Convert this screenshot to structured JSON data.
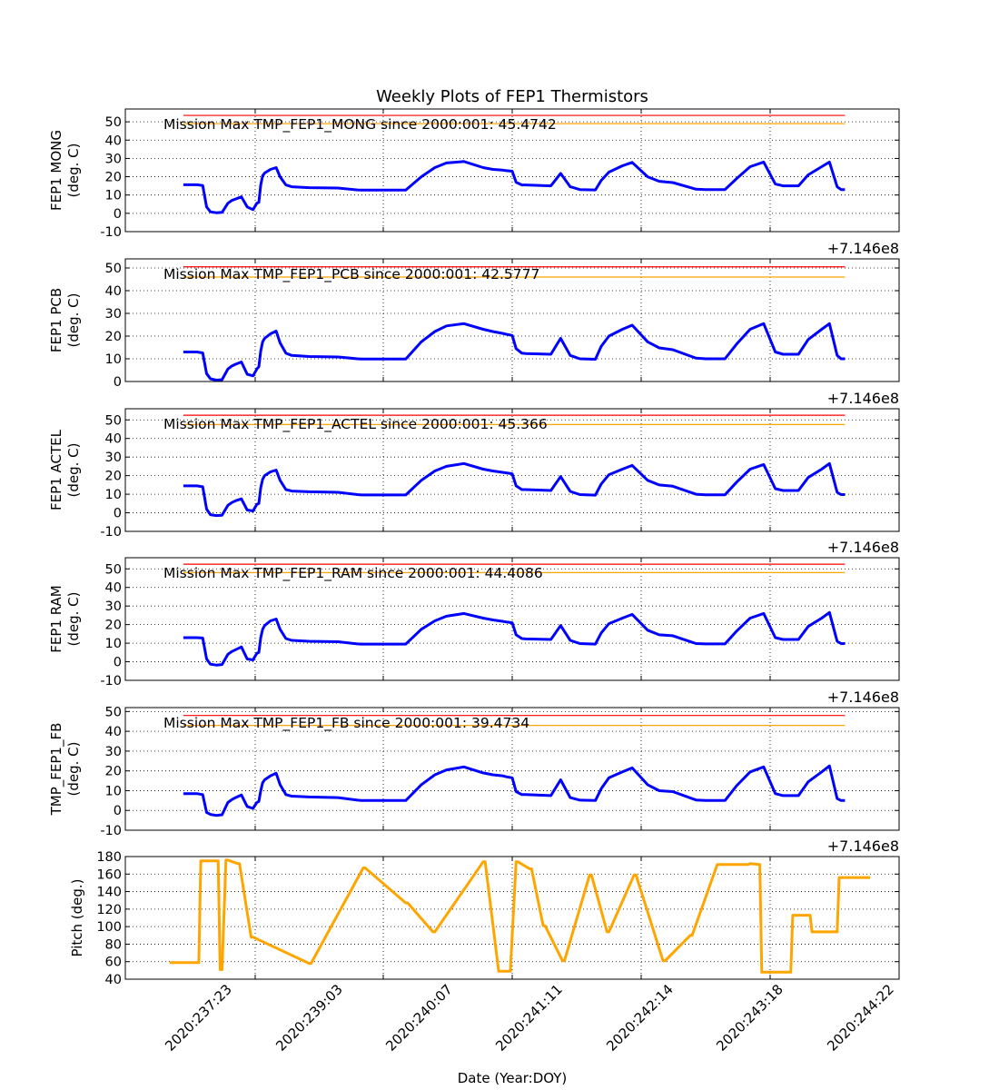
{
  "chart_data": {
    "title": "Weekly Plots of FEP1 Thermistors",
    "xlabel": "Date (Year:DOY)",
    "x_tick_labels": [
      "2020:237:23",
      "2020:239:03",
      "2020:240:07",
      "2020:241:11",
      "2020:242:14",
      "2020:243:18",
      "2020:244:22"
    ],
    "x_offset_label": "+7.146e8",
    "grid": true,
    "panels": [
      {
        "type": "line",
        "ylabel": [
          "FEP1 MONG",
          "(deg. C)"
        ],
        "ylim": [
          -10,
          57
        ],
        "yticks": [
          -10,
          0,
          10,
          20,
          30,
          40,
          50
        ],
        "annotation": "Mission Max TMP_FEP1_MONG since 2000:001: 45.4742",
        "red_limit": 53.5,
        "yellow_limit": 49,
        "series_color": "#0000ff",
        "x": [
          0.0,
          0.7,
          1.0,
          1.2,
          1.4,
          1.7,
          2.0,
          2.3,
          2.5,
          2.7,
          3.0,
          3.3,
          3.6,
          3.8,
          3.9,
          4.0,
          4.1,
          4.2,
          4.5,
          4.8,
          5.0,
          5.3,
          5.6,
          6.5,
          8.0,
          9.0,
          9.2,
          11.0,
          11.5,
          12.3,
          13.0,
          13.6,
          14.5,
          15.5,
          16.0,
          16.5,
          16.7,
          17.0,
          17.2,
          17.5,
          17.7,
          19.0,
          19.5,
          20.0,
          20.5,
          21.3,
          21.6,
          22.0,
          22.7,
          23.2,
          24.0,
          24.6,
          25.3,
          26.5,
          27.0,
          28.0,
          28.6,
          29.3,
          30.0,
          30.6,
          31.0,
          31.8,
          32.3,
          33.0,
          33.4,
          33.8,
          34.0,
          34.2
        ],
        "y": [
          15.6,
          15.6,
          15.2,
          3.5,
          0.8,
          0.3,
          0.5,
          5.5,
          7.0,
          7.8,
          9.0,
          3.5,
          2.0,
          5.5,
          6.0,
          15.5,
          20.5,
          22.0,
          24.0,
          25.0,
          20.0,
          15.5,
          14.5,
          14.0,
          13.8,
          12.8,
          12.7,
          12.7,
          12.7,
          20.0,
          25.0,
          27.5,
          28.3,
          25.0,
          24.0,
          23.6,
          23.3,
          23.0,
          17.0,
          15.5,
          15.5,
          15.0,
          21.8,
          14.5,
          13.0,
          12.8,
          18.0,
          22.5,
          26.0,
          27.8,
          20.0,
          17.5,
          16.8,
          13.2,
          13.0,
          13.0,
          19.0,
          25.5,
          28.0,
          16.0,
          15.0,
          15.0,
          21.0,
          25.5,
          28.0,
          14.5,
          13.0,
          13.0
        ]
      },
      {
        "type": "line",
        "ylabel": [
          "FEP1 PCB",
          "(deg. C)"
        ],
        "ylim": [
          0,
          54
        ],
        "yticks": [
          0,
          10,
          20,
          30,
          40,
          50
        ],
        "annotation": "Mission Max TMP_FEP1_PCB since 2000:001: 42.5777",
        "red_limit": 50.5,
        "yellow_limit": 46,
        "series_color": "#0000ff",
        "x": [
          0.0,
          0.7,
          1.0,
          1.2,
          1.4,
          1.7,
          2.0,
          2.3,
          2.5,
          2.7,
          3.0,
          3.3,
          3.6,
          3.8,
          3.9,
          4.0,
          4.1,
          4.2,
          4.5,
          4.8,
          5.0,
          5.3,
          5.6,
          6.5,
          8.0,
          9.0,
          9.2,
          11.0,
          11.5,
          12.3,
          13.0,
          13.6,
          14.5,
          15.5,
          16.0,
          16.5,
          16.7,
          17.0,
          17.2,
          17.5,
          17.7,
          19.0,
          19.5,
          20.0,
          20.5,
          21.3,
          21.6,
          22.0,
          22.7,
          23.2,
          24.0,
          24.6,
          25.3,
          26.5,
          27.0,
          28.0,
          28.6,
          29.3,
          30.0,
          30.6,
          31.0,
          31.8,
          32.3,
          33.0,
          33.4,
          33.8,
          34.0,
          34.2
        ],
        "y": [
          13.0,
          13.0,
          12.6,
          3.5,
          1.2,
          0.6,
          0.8,
          5.5,
          6.8,
          7.6,
          8.6,
          3.2,
          2.5,
          5.5,
          6.5,
          13.5,
          17.5,
          19.0,
          21.0,
          22.2,
          17.0,
          12.5,
          11.5,
          11.0,
          10.8,
          10.0,
          9.9,
          9.9,
          9.9,
          17.5,
          22.0,
          24.5,
          25.5,
          23.0,
          22.0,
          21.2,
          20.8,
          20.3,
          14.5,
          12.5,
          12.3,
          12.0,
          19.0,
          11.5,
          10.0,
          9.8,
          15.5,
          20.0,
          23.0,
          24.8,
          17.5,
          14.8,
          14.0,
          10.3,
          10.0,
          10.0,
          16.5,
          23.0,
          25.5,
          13.0,
          12.0,
          12.0,
          18.5,
          23.0,
          25.5,
          11.5,
          10.0,
          10.0
        ]
      },
      {
        "type": "line",
        "ylabel": [
          "FEP1 ACTEL",
          "(deg. C)"
        ],
        "ylim": [
          -10,
          56
        ],
        "yticks": [
          -10,
          0,
          10,
          20,
          30,
          40,
          50
        ],
        "annotation": "Mission Max TMP_FEP1_ACTEL since 2000:001: 45.366",
        "red_limit": 52.5,
        "yellow_limit": 47.5,
        "series_color": "#0000ff",
        "x": [
          0.0,
          0.7,
          1.0,
          1.2,
          1.4,
          1.7,
          2.0,
          2.3,
          2.5,
          2.7,
          3.0,
          3.3,
          3.6,
          3.8,
          3.9,
          4.0,
          4.1,
          4.2,
          4.5,
          4.8,
          5.0,
          5.3,
          5.6,
          6.5,
          8.0,
          9.0,
          9.2,
          11.0,
          11.5,
          12.3,
          13.0,
          13.6,
          14.5,
          15.5,
          16.0,
          16.5,
          16.7,
          17.0,
          17.2,
          17.5,
          17.7,
          19.0,
          19.5,
          20.0,
          20.5,
          21.3,
          21.6,
          22.0,
          22.7,
          23.2,
          24.0,
          24.6,
          25.3,
          26.5,
          27.0,
          28.0,
          28.6,
          29.3,
          30.0,
          30.6,
          31.0,
          31.8,
          32.3,
          33.0,
          33.4,
          33.8,
          34.0,
          34.2
        ],
        "y": [
          14.5,
          14.5,
          14.0,
          2.0,
          -1.0,
          -1.5,
          -1.3,
          4.0,
          5.5,
          6.5,
          7.5,
          1.5,
          1.0,
          4.5,
          5.0,
          13.5,
          18.0,
          20.0,
          22.0,
          23.0,
          17.5,
          12.5,
          11.7,
          11.3,
          11.0,
          9.8,
          9.6,
          9.6,
          9.6,
          17.5,
          22.5,
          25.0,
          26.5,
          23.5,
          22.5,
          21.8,
          21.5,
          21.0,
          14.5,
          12.5,
          12.5,
          12.0,
          19.5,
          11.5,
          9.8,
          9.5,
          15.5,
          20.5,
          23.5,
          25.5,
          17.5,
          15.0,
          14.3,
          10.0,
          9.7,
          9.7,
          16.5,
          23.5,
          26.0,
          13.0,
          12.0,
          12.0,
          19.0,
          23.5,
          26.5,
          11.0,
          9.8,
          9.8
        ]
      },
      {
        "type": "line",
        "ylabel": [
          "FEP1 RAM",
          "(deg. C)"
        ],
        "ylim": [
          -10,
          56
        ],
        "yticks": [
          -10,
          0,
          10,
          20,
          30,
          40,
          50
        ],
        "annotation": "Mission Max TMP_FEP1_RAM since 2000:001: 44.4086",
        "red_limit": 52.5,
        "yellow_limit": 48,
        "series_color": "#0000ff",
        "x": [
          0.0,
          0.7,
          1.0,
          1.2,
          1.4,
          1.7,
          2.0,
          2.3,
          2.5,
          2.7,
          3.0,
          3.3,
          3.6,
          3.8,
          3.9,
          4.0,
          4.1,
          4.2,
          4.5,
          4.8,
          5.0,
          5.3,
          5.6,
          6.5,
          8.0,
          9.0,
          9.2,
          11.0,
          11.5,
          12.3,
          13.0,
          13.6,
          14.5,
          15.5,
          16.0,
          16.5,
          16.7,
          17.0,
          17.2,
          17.5,
          17.7,
          19.0,
          19.5,
          20.0,
          20.5,
          21.3,
          21.6,
          22.0,
          22.7,
          23.2,
          24.0,
          24.6,
          25.3,
          26.5,
          27.0,
          28.0,
          28.6,
          29.3,
          30.0,
          30.6,
          31.0,
          31.8,
          32.3,
          33.0,
          33.4,
          33.8,
          34.0,
          34.2
        ],
        "y": [
          13.0,
          13.0,
          12.8,
          1.5,
          -1.3,
          -1.8,
          -1.5,
          4.0,
          5.5,
          6.5,
          8.0,
          1.5,
          1.0,
          4.5,
          5.0,
          13.0,
          17.5,
          19.5,
          22.0,
          23.0,
          17.5,
          12.5,
          11.5,
          11.0,
          10.8,
          9.6,
          9.5,
          9.5,
          9.5,
          17.5,
          22.0,
          24.5,
          26.0,
          23.5,
          22.5,
          21.8,
          21.4,
          21.0,
          14.5,
          12.5,
          12.3,
          12.0,
          19.5,
          11.5,
          9.8,
          9.5,
          15.5,
          20.5,
          23.5,
          25.5,
          17.0,
          14.5,
          14.0,
          9.8,
          9.6,
          9.6,
          16.5,
          23.5,
          26.0,
          13.0,
          12.0,
          12.0,
          19.0,
          23.5,
          26.5,
          11.0,
          9.8,
          9.8
        ]
      },
      {
        "type": "line",
        "ylabel": [
          "TMP_FEP1_FB",
          "(deg. C)"
        ],
        "ylim": [
          -10,
          52
        ],
        "yticks": [
          -10,
          0,
          10,
          20,
          30,
          40,
          50
        ],
        "annotation": "Mission Max TMP_FEP1_FB since 2000:001: 39.4734",
        "red_limit": 48,
        "yellow_limit": 43,
        "series_color": "#0000ff",
        "x": [
          0.0,
          0.7,
          1.0,
          1.2,
          1.4,
          1.7,
          2.0,
          2.3,
          2.5,
          2.7,
          3.0,
          3.3,
          3.6,
          3.8,
          3.9,
          4.0,
          4.1,
          4.2,
          4.5,
          4.8,
          5.0,
          5.3,
          5.6,
          6.5,
          8.0,
          9.0,
          9.2,
          11.0,
          11.5,
          12.3,
          13.0,
          13.6,
          14.5,
          15.5,
          16.0,
          16.5,
          16.7,
          17.0,
          17.2,
          17.5,
          17.7,
          19.0,
          19.5,
          20.0,
          20.5,
          21.3,
          21.6,
          22.0,
          22.7,
          23.2,
          24.0,
          24.6,
          25.3,
          26.5,
          27.0,
          28.0,
          28.6,
          29.3,
          30.0,
          30.6,
          31.0,
          31.8,
          32.3,
          33.0,
          33.4,
          33.8,
          34.0,
          34.2
        ],
        "y": [
          8.5,
          8.5,
          8.0,
          -1.0,
          -2.0,
          -2.5,
          -2.2,
          4.0,
          5.5,
          6.5,
          7.8,
          2.0,
          1.0,
          4.0,
          4.5,
          10.0,
          14.0,
          15.5,
          17.5,
          18.8,
          13.0,
          8.0,
          7.2,
          6.8,
          6.5,
          5.2,
          5.0,
          5.0,
          5.0,
          13.0,
          18.0,
          20.5,
          22.0,
          19.0,
          18.0,
          17.5,
          17.0,
          16.5,
          9.5,
          8.0,
          8.0,
          7.5,
          15.5,
          6.5,
          5.2,
          5.0,
          11.0,
          16.5,
          19.5,
          21.5,
          13.0,
          10.0,
          9.5,
          5.3,
          5.0,
          5.0,
          12.5,
          19.5,
          22.0,
          8.5,
          7.5,
          7.5,
          14.5,
          19.5,
          22.5,
          6.0,
          5.0,
          5.0
        ]
      },
      {
        "type": "line",
        "ylabel": [
          "Pitch (deg.)"
        ],
        "ylim": [
          40,
          180
        ],
        "yticks": [
          40,
          60,
          80,
          100,
          120,
          140,
          160,
          180
        ],
        "series_color": "#ffa500",
        "x": [
          -0.7,
          0.8,
          0.9,
          1.8,
          1.9,
          2.0,
          2.2,
          2.3,
          2.8,
          2.9,
          3.5,
          3.6,
          6.5,
          6.6,
          9.3,
          9.4,
          11.5,
          11.6,
          12.9,
          13.0,
          15.5,
          15.6,
          16.3,
          16.4,
          16.8,
          16.9,
          17.2,
          17.3,
          17.9,
          18.0,
          18.6,
          18.7,
          19.6,
          19.7,
          21.0,
          21.1,
          21.9,
          22.0,
          23.3,
          23.4,
          24.8,
          24.9,
          26.2,
          26.3,
          27.6,
          27.7,
          29.2,
          29.3,
          29.8,
          29.9,
          31.4,
          31.5,
          31.6,
          32.0,
          32.1,
          32.4,
          32.5,
          33.8,
          33.9,
          35.1,
          35.2,
          35.5
        ],
        "y": [
          59,
          59,
          175,
          175,
          51,
          51,
          176,
          176,
          172,
          172,
          88,
          88,
          58,
          58,
          167,
          167,
          127,
          127,
          94,
          94,
          174,
          174,
          49,
          49,
          49,
          49,
          174,
          174,
          166,
          166,
          101,
          101,
          61,
          61,
          159,
          159,
          94,
          94,
          159,
          159,
          61,
          61,
          90,
          90,
          171,
          171,
          171,
          172,
          171,
          48,
          48,
          113,
          113,
          113,
          113,
          113,
          94,
          94,
          156,
          156,
          156,
          156
        ]
      }
    ]
  }
}
